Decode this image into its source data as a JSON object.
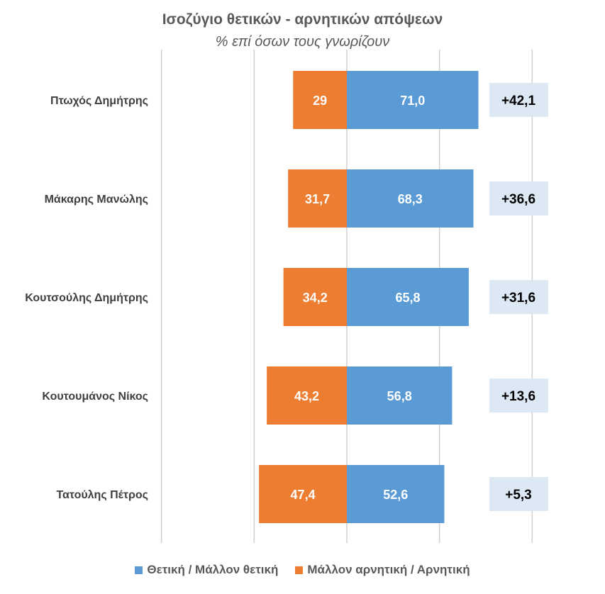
{
  "chart_data": {
    "type": "bar",
    "stacked": "diverging",
    "title": "Ισοζύγιο θετικών - αρνητικών απόψεων",
    "subtitle": "% επί όσων τους γνωρίζουν",
    "categories": [
      "Πτωχός Δημήτρης",
      "Μάκαρης Μανώλης",
      "Κουτσούλης Δημήτρης",
      "Κουτουμάνος Νίκος",
      "Τατούλης Πέτρος"
    ],
    "series": [
      {
        "name": "Θετική / Μάλλον θετική",
        "color": "#5b9bd5",
        "values": [
          71.0,
          68.3,
          65.8,
          56.8,
          52.6
        ],
        "labels": [
          "71,0",
          "68,3",
          "65,8",
          "56,8",
          "52,6"
        ]
      },
      {
        "name": "Μάλλον αρνητική / Αρνητική",
        "color": "#ed7d31",
        "values": [
          29,
          31.7,
          34.2,
          43.2,
          47.4
        ],
        "labels": [
          "29",
          "31,7",
          "34,2",
          "43,2",
          "47,4"
        ]
      }
    ],
    "net_labels": [
      "+42,1",
      "+36,6",
      "+31,6",
      "+13,6",
      "+5,3"
    ],
    "xlim": [
      -100,
      100
    ],
    "gridlines": [
      -100,
      -50,
      0,
      50,
      100
    ],
    "legend_position": "bottom"
  }
}
